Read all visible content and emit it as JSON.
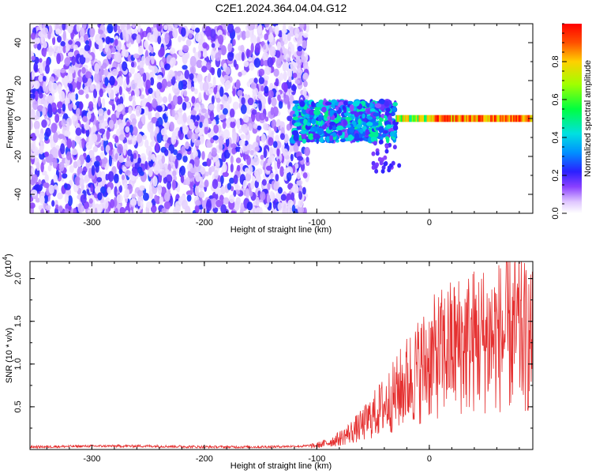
{
  "title": "C2E1.2024.364.04.04.G12",
  "colorbar": {
    "label": "Normalized spectral amplitude",
    "range": [
      0,
      1
    ],
    "ticks": [
      0.0,
      0.2,
      0.4,
      0.6,
      0.8
    ],
    "tick_labels": [
      "0.0",
      "0.2",
      "0.4",
      "0.6",
      "0.8"
    ],
    "colormap": "rainbow (white-purple-blue-cyan-green-yellow-red)"
  },
  "chart_data": [
    {
      "type": "heatmap",
      "xlabel": "Height of straight line (km)",
      "ylabel": "Frequency (Hz)",
      "xlim": [
        -355,
        92
      ],
      "ylim": [
        -50,
        50
      ],
      "xticks": [
        -300,
        -200,
        -100,
        0
      ],
      "xtick_labels": [
        "-300",
        "-200",
        "-100",
        "0"
      ],
      "yticks": [
        -40,
        -20,
        0,
        20,
        40
      ],
      "ytick_labels": [
        "-40",
        "-20",
        "0",
        "20",
        "40"
      ],
      "grid": false,
      "description_regions": [
        {
          "x_range": [
            -355,
            -108
          ],
          "f_range": [
            -50,
            50
          ],
          "amplitude": "scattered noise ~0.05-0.25"
        },
        {
          "x_range": [
            -122,
            -30
          ],
          "f_range": [
            -15,
            10
          ],
          "amplitude": "signal band 0.2-0.5"
        },
        {
          "x_range": [
            -30,
            92
          ],
          "f_range": [
            -2,
            2
          ],
          "amplitude": "narrow carrier ~0.8-1.0"
        },
        {
          "x_range": [
            -50,
            -25
          ],
          "f_range": [
            -28,
            -10
          ],
          "amplitude": "spur ~0.2"
        }
      ]
    },
    {
      "type": "line",
      "xlabel": "Height of straight line (km)",
      "ylabel": "SNR (10 * v/v)",
      "y_multiplier": "(x10^4)",
      "y_multiplier_base": "(x10",
      "y_multiplier_exp": "4",
      "y_multiplier_close": ")",
      "xlim": [
        -355,
        92
      ],
      "ylim": [
        0,
        2.2
      ],
      "xticks": [
        -300,
        -200,
        -100,
        0
      ],
      "xtick_labels": [
        "-300",
        "-200",
        "-100",
        "0"
      ],
      "yticks": [
        0.5,
        1.0,
        1.5,
        2.0
      ],
      "ytick_labels": [
        "0.5",
        "1.0",
        "1.5",
        "2.0"
      ],
      "grid": false,
      "series": [
        {
          "color": "#e53030",
          "x": [
            -355,
            -300,
            -250,
            -200,
            -150,
            -110,
            -100,
            -90,
            -80,
            -70,
            -60,
            -50,
            -40,
            -30,
            -20,
            -10,
            0,
            10,
            20,
            30,
            40,
            50,
            60,
            70,
            80,
            92
          ],
          "y": [
            0.03,
            0.04,
            0.04,
            0.03,
            0.03,
            0.04,
            0.06,
            0.1,
            0.16,
            0.25,
            0.35,
            0.5,
            0.65,
            0.8,
            1.0,
            1.15,
            1.3,
            1.4,
            1.5,
            1.55,
            1.6,
            1.62,
            1.65,
            1.68,
            1.7,
            1.55
          ]
        }
      ]
    }
  ]
}
